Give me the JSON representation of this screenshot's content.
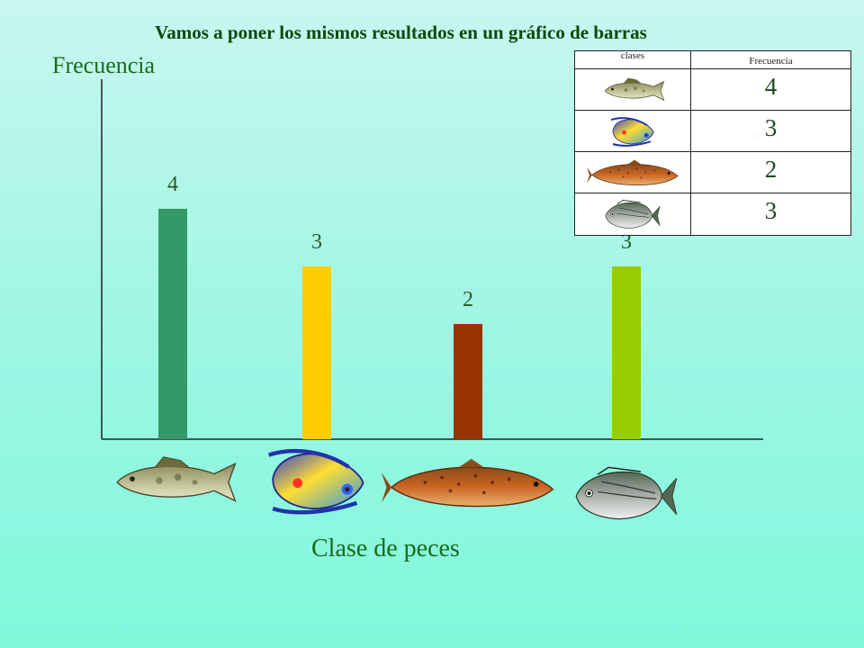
{
  "title": "Vamos a poner los mismos resultados en un gráfico de barras",
  "chart_data": {
    "type": "bar",
    "title": "Vamos a poner los mismos resultados en un gráfico de barras",
    "ylabel": "Frecuencia",
    "xlabel": "Clase de peces",
    "categories": [
      "",
      "",
      "",
      ""
    ],
    "category_icons": [
      "zander-fish-icon",
      "angelfish-icon",
      "trout-icon",
      "sea-bream-icon"
    ],
    "values": [
      4,
      3,
      2,
      3
    ],
    "ylim": [
      0,
      6
    ],
    "colors": [
      "#339966",
      "#ffcc00",
      "#993300",
      "#99cc00"
    ],
    "grid": false
  },
  "table": {
    "header_clases": "clases",
    "header_frecuencia": "Frecuencia",
    "rows": [
      {
        "icon": "zander-fish-icon",
        "value": "4"
      },
      {
        "icon": "angelfish-icon",
        "value": "3"
      },
      {
        "icon": "trout-icon",
        "value": "2"
      },
      {
        "icon": "sea-bream-icon",
        "value": "3"
      }
    ]
  }
}
